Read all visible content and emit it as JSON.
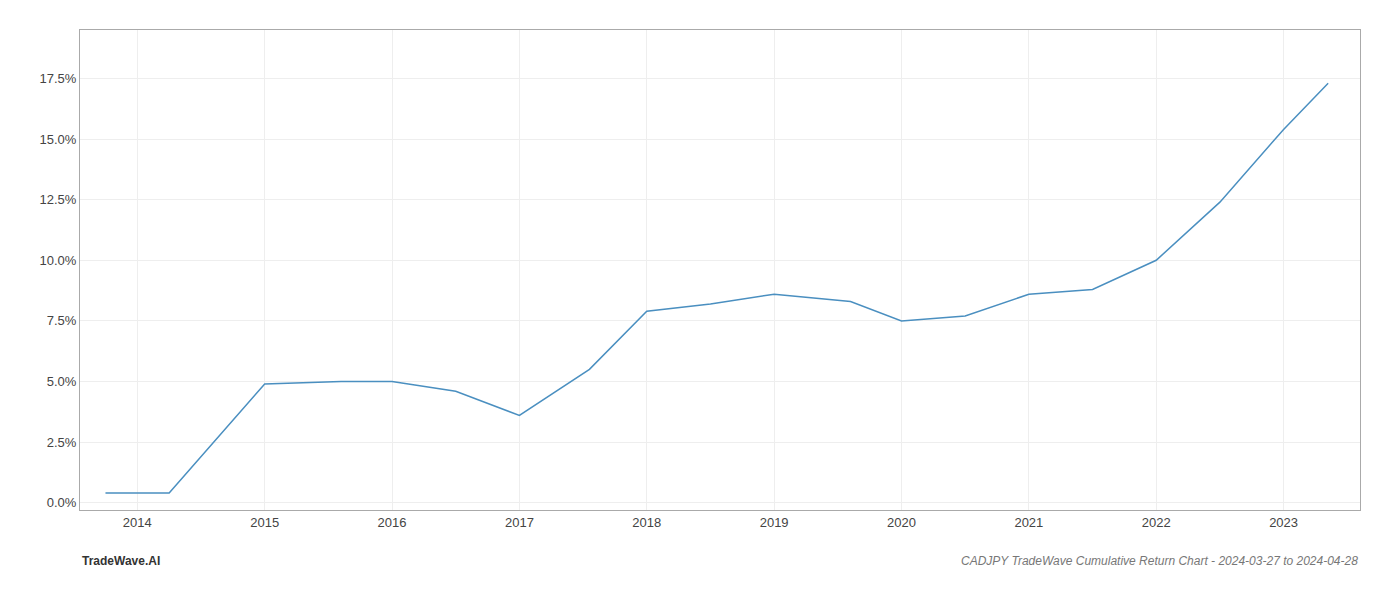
{
  "chart_data": {
    "type": "line",
    "title": "CADJPY TradeWave Cumulative Return Chart - 2024-03-27 to 2024-04-28",
    "annotations": [
      "TradeWave.AI"
    ],
    "x": [
      2013.75,
      2014.25,
      2015.0,
      2015.6,
      2016.0,
      2016.5,
      2017.0,
      2017.55,
      2018.0,
      2018.5,
      2019.0,
      2019.6,
      2020.0,
      2020.5,
      2021.0,
      2021.5,
      2022.0,
      2022.5,
      2023.0,
      2023.35
    ],
    "values": [
      0.004,
      0.004,
      0.049,
      0.05,
      0.05,
      0.046,
      0.036,
      0.055,
      0.079,
      0.082,
      0.086,
      0.083,
      0.075,
      0.077,
      0.086,
      0.088,
      0.1,
      0.124,
      0.154,
      0.173
    ],
    "color": "#4a8fc0",
    "xlim": [
      2013.55,
      2023.6
    ],
    "xticks": [
      2014,
      2015,
      2016,
      2017,
      2018,
      2019,
      2020,
      2021,
      2022,
      2023
    ],
    "ylim": [
      -0.003,
      0.195
    ],
    "yticks": [
      {
        "value": 0.0,
        "label": "0.0%"
      },
      {
        "value": 0.025,
        "label": "2.5%"
      },
      {
        "value": 0.05,
        "label": "5.0%"
      },
      {
        "value": 0.075,
        "label": "7.5%"
      },
      {
        "value": 0.1,
        "label": "10.0%"
      },
      {
        "value": 0.125,
        "label": "12.5%"
      },
      {
        "value": 0.15,
        "label": "15.0%"
      },
      {
        "value": 0.175,
        "label": "17.5%"
      }
    ],
    "grid": true
  }
}
